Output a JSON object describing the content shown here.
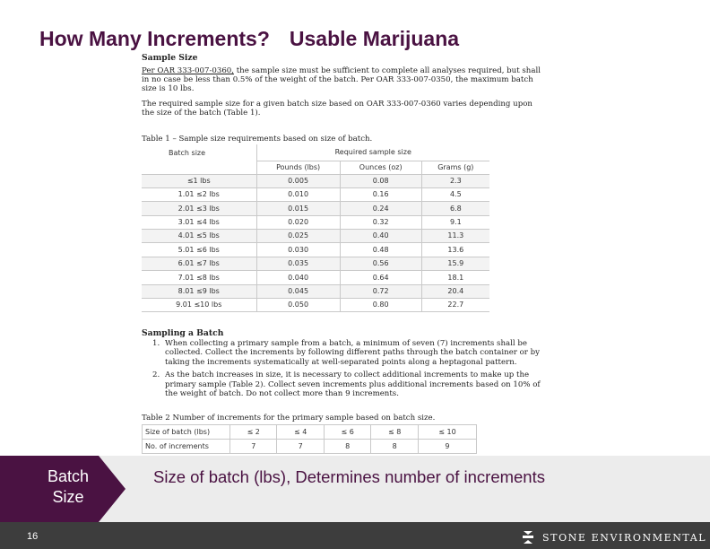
{
  "title": {
    "part1": "How Many Increments?",
    "part2": "Usable Marijuana"
  },
  "doc": {
    "sample_size_heading": "Sample Size",
    "para1_rule": "Per OAR 333-007-0360,",
    "para1_rest": " the sample size must be sufficient to complete all analyses required, but shall in no case be less than 0.5% of the weight of the batch. Per OAR 333-007-0350, the maximum batch size is 10 lbs.",
    "para2": "The required sample size for a given batch size based on OAR 333-007-0360 varies depending upon the size of the batch (Table 1).",
    "table1_caption": "Table 1 – Sample size requirements based on size of batch.",
    "table1": {
      "header_batch": "Batch size",
      "header_required": "Required sample size",
      "subheaders": [
        "Pounds (lbs)",
        "Ounces (oz)",
        "Grams (g)"
      ],
      "rows": [
        [
          "≤1 lbs",
          "0.005",
          "0.08",
          "2.3"
        ],
        [
          "1.01 ≤2 lbs",
          "0.010",
          "0.16",
          "4.5"
        ],
        [
          "2.01 ≤3 lbs",
          "0.015",
          "0.24",
          "6.8"
        ],
        [
          "3.01 ≤4 lbs",
          "0.020",
          "0.32",
          "9.1"
        ],
        [
          "4.01 ≤5 lbs",
          "0.025",
          "0.40",
          "11.3"
        ],
        [
          "5.01 ≤6 lbs",
          "0.030",
          "0.48",
          "13.6"
        ],
        [
          "6.01 ≤7 lbs",
          "0.035",
          "0.56",
          "15.9"
        ],
        [
          "7.01 ≤8 lbs",
          "0.040",
          "0.64",
          "18.1"
        ],
        [
          "8.01 ≤9 lbs",
          "0.045",
          "0.72",
          "20.4"
        ],
        [
          "9.01 ≤10 lbs",
          "0.050",
          "0.80",
          "22.7"
        ]
      ]
    },
    "sampling_heading": "Sampling a Batch",
    "steps": [
      {
        "num": "1.",
        "text": "When collecting a primary sample from a batch, a minimum of seven (7) increments shall be collected. Collect the increments by following different paths through the batch container or by taking the increments systematically at well-separated points along a heptagonal pattern."
      },
      {
        "num": "2.",
        "text": "As the batch increases in size, it is necessary to collect additional increments to make up the primary sample (Table 2). Collect seven increments plus additional increments based on 10% of the weight of batch. Do not collect more than 9 increments."
      }
    ],
    "table2_caption": "Table 2   Number of increments for the primary sample based on batch size.",
    "table2": {
      "row1_label": "Size of batch (lbs)",
      "row1": [
        "≤ 2",
        "≤ 4",
        "≤ 6",
        "≤ 8",
        "≤ 10"
      ],
      "row2_label": "No. of increments",
      "row2": [
        "7",
        "7",
        "8",
        "8",
        "9"
      ]
    }
  },
  "label_tab": {
    "line1": "Batch",
    "line2": "Size"
  },
  "main_caption": "Size of batch (lbs), Determines number of increments",
  "footer": {
    "page_number": "16",
    "logo_text": "STONE ENVIRONMENTAL"
  },
  "colors": {
    "brand": "#4a1242",
    "band": "#ececec",
    "footer": "#3d3d3d"
  }
}
